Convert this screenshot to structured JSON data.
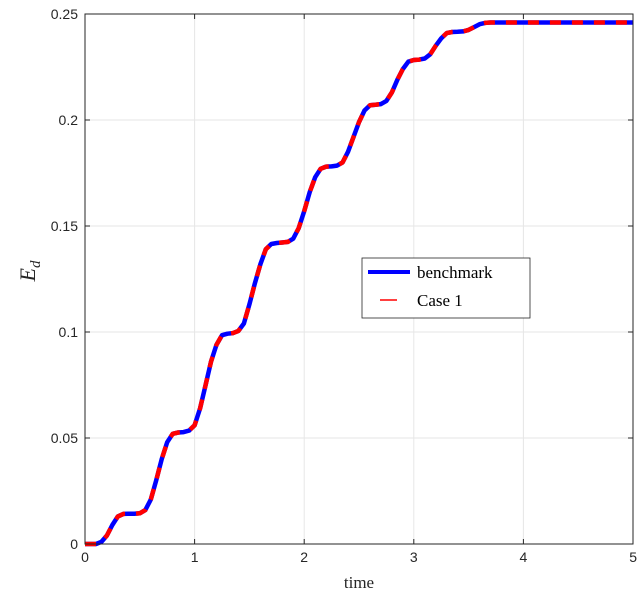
{
  "chart_data": {
    "type": "line",
    "title": "",
    "xlabel": "time",
    "ylabel": {
      "base": "E",
      "sub": "d"
    },
    "xlim": [
      0,
      5
    ],
    "ylim": [
      0,
      0.25
    ],
    "xticks": [
      0,
      1,
      2,
      3,
      4,
      5
    ],
    "xtick_labels": [
      "0",
      "1",
      "2",
      "3",
      "4",
      "5"
    ],
    "yticks": [
      0,
      0.05,
      0.1,
      0.15,
      0.2,
      0.25
    ],
    "ytick_labels": [
      "0",
      "0.05",
      "0.1",
      "0.15",
      "0.2",
      "0.25"
    ],
    "grid": true,
    "legend_position": "center-right",
    "series": [
      {
        "name": "benchmark",
        "color": "#0000ff",
        "style": "solid",
        "x": [
          0,
          0.1,
          0.15,
          0.2,
          0.25,
          0.3,
          0.35,
          0.4,
          0.45,
          0.5,
          0.55,
          0.6,
          0.65,
          0.7,
          0.75,
          0.8,
          0.85,
          0.9,
          0.95,
          1.0,
          1.05,
          1.1,
          1.15,
          1.2,
          1.25,
          1.3,
          1.35,
          1.4,
          1.45,
          1.5,
          1.55,
          1.6,
          1.65,
          1.7,
          1.75,
          1.8,
          1.85,
          1.9,
          1.95,
          2.0,
          2.05,
          2.1,
          2.15,
          2.2,
          2.25,
          2.3,
          2.35,
          2.4,
          2.45,
          2.5,
          2.55,
          2.6,
          2.65,
          2.7,
          2.75,
          2.8,
          2.85,
          2.9,
          2.95,
          3.0,
          3.05,
          3.1,
          3.15,
          3.2,
          3.25,
          3.3,
          3.35,
          3.4,
          3.45,
          3.5,
          3.55,
          3.6,
          3.65,
          3.7,
          3.75,
          3.8,
          3.85,
          3.9,
          4.0,
          4.1,
          4.2,
          4.3,
          4.4,
          4.5,
          4.7,
          5.0
        ],
        "y": [
          0,
          0,
          0.001,
          0.004,
          0.009,
          0.013,
          0.0142,
          0.0143,
          0.0143,
          0.0145,
          0.016,
          0.021,
          0.03,
          0.04,
          0.048,
          0.052,
          0.0526,
          0.0528,
          0.0535,
          0.056,
          0.064,
          0.075,
          0.086,
          0.094,
          0.0985,
          0.0992,
          0.0995,
          0.1005,
          0.104,
          0.113,
          0.123,
          0.132,
          0.139,
          0.1415,
          0.142,
          0.1422,
          0.1425,
          0.144,
          0.149,
          0.157,
          0.166,
          0.173,
          0.177,
          0.178,
          0.1781,
          0.1785,
          0.18,
          0.185,
          0.192,
          0.199,
          0.2045,
          0.207,
          0.2072,
          0.2075,
          0.209,
          0.213,
          0.219,
          0.224,
          0.2275,
          0.2283,
          0.2285,
          0.229,
          0.231,
          0.235,
          0.2385,
          0.241,
          0.2415,
          0.2416,
          0.2418,
          0.2425,
          0.2438,
          0.2452,
          0.2458,
          0.246,
          0.246,
          0.246,
          0.246,
          0.246,
          0.246,
          0.246,
          0.246,
          0.246,
          0.246,
          0.246,
          0.246,
          0.246
        ]
      },
      {
        "name": "Case 1",
        "color": "#ff0000",
        "style": "dashed"
      }
    ]
  }
}
